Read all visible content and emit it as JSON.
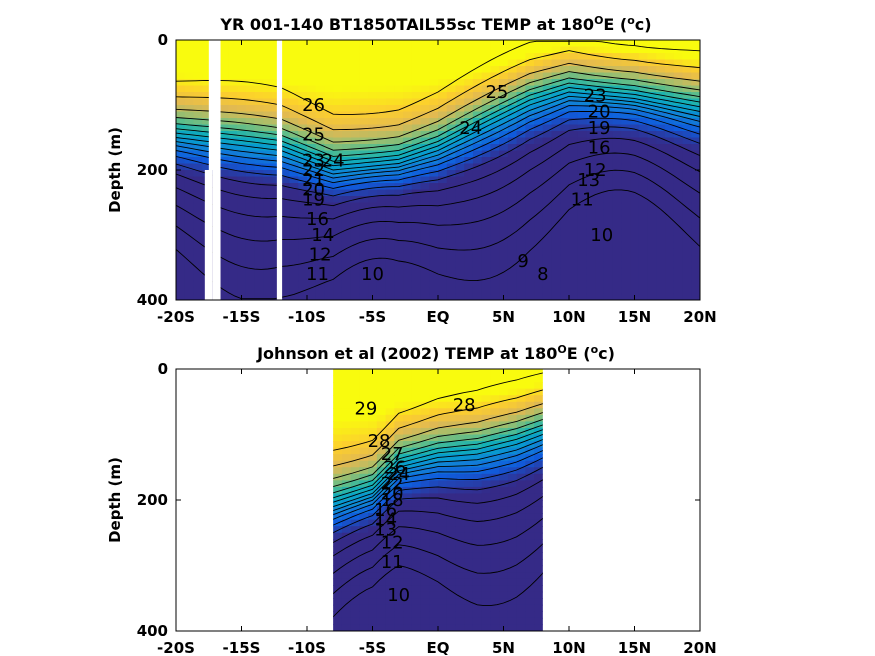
{
  "chart_data": [
    {
      "type": "heatmap",
      "title": "YR 001-140 BT1850TAIL55sc TEMP at 180",
      "title_deg": "O",
      "title_mid": "E (",
      "title_unit_sup": "o",
      "title_end": "c)",
      "ylabel": "Depth (m)",
      "xlim": [
        -20,
        20
      ],
      "ylim": [
        0,
        400
      ],
      "y_reversed": true,
      "x_ticks": [
        -20,
        -15,
        -10,
        -5,
        0,
        5,
        10,
        15,
        20
      ],
      "x_tick_labels": [
        "-20S",
        "-15S",
        "-10S",
        "-5S",
        "EQ",
        "5N",
        "10N",
        "15N",
        "20N"
      ],
      "y_ticks": [
        0,
        200,
        400
      ],
      "y_tick_labels": [
        "0",
        "200",
        "400"
      ],
      "colormap": "parula",
      "color_range": [
        8,
        29
      ],
      "gaps": [
        {
          "x0": -17.8,
          "x1": -17.2,
          "y0": 0,
          "y1": 400,
          "note_y_split": 200
        },
        {
          "x0": -17.2,
          "x1": -16.6,
          "y0": 0,
          "y1": 400
        },
        {
          "x0": -12.3,
          "x1": -11.9,
          "y0": 0,
          "y1": 400
        }
      ],
      "thermocline_depth": [
        {
          "x": -20,
          "depth": 150
        },
        {
          "x": -12,
          "depth": 170
        },
        {
          "x": -8,
          "depth": 200
        },
        {
          "x": -3,
          "depth": 190
        },
        {
          "x": 0,
          "depth": 170
        },
        {
          "x": 3,
          "depth": 140
        },
        {
          "x": 7,
          "depth": 100
        },
        {
          "x": 10,
          "depth": 80
        },
        {
          "x": 15,
          "depth": 90
        },
        {
          "x": 20,
          "depth": 110
        }
      ],
      "contour_labels": [
        {
          "value": "26",
          "x": -9.5,
          "depth": 100
        },
        {
          "value": "25",
          "x": -9.5,
          "depth": 145
        },
        {
          "value": "24",
          "x": -8.0,
          "depth": 185
        },
        {
          "value": "23",
          "x": -9.5,
          "depth": 185
        },
        {
          "value": "22",
          "x": -9.5,
          "depth": 200
        },
        {
          "value": "21",
          "x": -9.5,
          "depth": 215
        },
        {
          "value": "20",
          "x": -9.5,
          "depth": 230
        },
        {
          "value": "19",
          "x": -9.5,
          "depth": 245
        },
        {
          "value": "16",
          "x": -9.2,
          "depth": 275
        },
        {
          "value": "14",
          "x": -8.8,
          "depth": 300
        },
        {
          "value": "12",
          "x": -9.0,
          "depth": 330
        },
        {
          "value": "11",
          "x": -9.2,
          "depth": 360
        },
        {
          "value": "10",
          "x": -5.0,
          "depth": 360
        },
        {
          "value": "25",
          "x": 4.5,
          "depth": 80
        },
        {
          "value": "24",
          "x": 2.5,
          "depth": 135
        },
        {
          "value": "23",
          "x": 12.0,
          "depth": 85
        },
        {
          "value": "20",
          "x": 12.3,
          "depth": 110
        },
        {
          "value": "19",
          "x": 12.3,
          "depth": 135
        },
        {
          "value": "16",
          "x": 12.3,
          "depth": 165
        },
        {
          "value": "13",
          "x": 11.5,
          "depth": 215
        },
        {
          "value": "12",
          "x": 12.0,
          "depth": 200
        },
        {
          "value": "11",
          "x": 11.0,
          "depth": 245
        },
        {
          "value": "10",
          "x": 12.5,
          "depth": 300
        },
        {
          "value": "9",
          "x": 6.5,
          "depth": 340
        },
        {
          "value": "8",
          "x": 8.0,
          "depth": 360
        }
      ]
    },
    {
      "type": "heatmap",
      "title": "Johnson et al (2002) TEMP at 180",
      "title_deg": "O",
      "title_mid": "E (",
      "title_unit_sup": "o",
      "title_end": "c)",
      "ylabel": "Depth (m)",
      "xlim": [
        -20,
        20
      ],
      "ylim": [
        0,
        400
      ],
      "y_reversed": true,
      "x_ticks": [
        -20,
        -15,
        -10,
        -5,
        0,
        5,
        10,
        15,
        20
      ],
      "x_tick_labels": [
        "-20S",
        "-15S",
        "-10S",
        "-5S",
        "EQ",
        "5N",
        "10N",
        "15N",
        "20N"
      ],
      "y_ticks": [
        0,
        200,
        400
      ],
      "y_tick_labels": [
        "0",
        "200",
        "400"
      ],
      "colormap": "parula",
      "color_range": [
        8,
        30
      ],
      "data_extent_x": [
        -8,
        8
      ],
      "thermocline_depth": [
        {
          "x": -8,
          "depth": 210
        },
        {
          "x": -5,
          "depth": 190
        },
        {
          "x": -3,
          "depth": 150
        },
        {
          "x": 0,
          "depth": 135
        },
        {
          "x": 3,
          "depth": 130
        },
        {
          "x": 6,
          "depth": 115
        },
        {
          "x": 8,
          "depth": 100
        }
      ],
      "contour_labels": [
        {
          "value": "29",
          "x": -5.5,
          "depth": 60
        },
        {
          "value": "28",
          "x": 2.0,
          "depth": 55
        },
        {
          "value": "28",
          "x": -4.5,
          "depth": 110
        },
        {
          "value": "27",
          "x": -3.5,
          "depth": 130
        },
        {
          "value": "26",
          "x": -3.3,
          "depth": 150
        },
        {
          "value": "24",
          "x": -3.0,
          "depth": 160
        },
        {
          "value": "22",
          "x": -3.5,
          "depth": 175
        },
        {
          "value": "20",
          "x": -3.5,
          "depth": 190
        },
        {
          "value": "18",
          "x": -3.5,
          "depth": 200
        },
        {
          "value": "16",
          "x": -4.0,
          "depth": 215
        },
        {
          "value": "14",
          "x": -4.0,
          "depth": 230
        },
        {
          "value": "13",
          "x": -4.0,
          "depth": 245
        },
        {
          "value": "12",
          "x": -3.5,
          "depth": 265
        },
        {
          "value": "11",
          "x": -3.5,
          "depth": 295
        },
        {
          "value": "10",
          "x": -3.0,
          "depth": 345
        }
      ]
    }
  ]
}
